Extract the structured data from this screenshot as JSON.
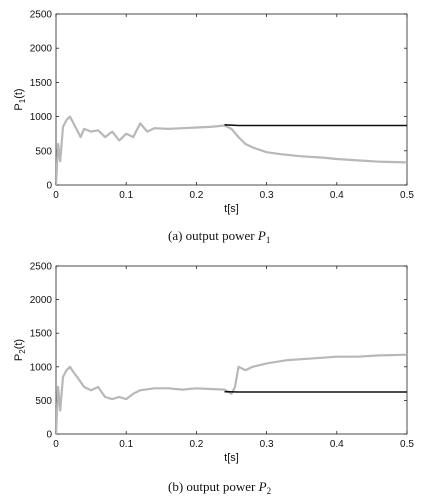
{
  "chart_data": [
    {
      "type": "line",
      "caption": "(a) output power P1",
      "caption_text": "(a)  output power ",
      "caption_var": "P",
      "caption_sub": "1",
      "ylabel": "P1(t)",
      "ylabel_main": "P",
      "ylabel_sub": "1",
      "ylabel_tail": "(t)",
      "xlabel": "t[s]",
      "xlim": [
        0,
        0.5
      ],
      "ylim": [
        0,
        2500
      ],
      "xticks": [
        "0",
        "0.1",
        "0.2",
        "0.3",
        "0.4",
        "0.5"
      ],
      "yticks": [
        "0",
        "500",
        "1000",
        "1500",
        "2000",
        "2500"
      ],
      "series": [
        {
          "color": "#b8b8b8",
          "x": [
            0,
            0.003,
            0.006,
            0.01,
            0.015,
            0.02,
            0.025,
            0.03,
            0.035,
            0.04,
            0.05,
            0.06,
            0.07,
            0.08,
            0.09,
            0.1,
            0.11,
            0.12,
            0.13,
            0.14,
            0.16,
            0.18,
            0.2,
            0.22,
            0.24,
            0.25,
            0.26,
            0.27,
            0.28,
            0.3,
            0.32,
            0.35,
            0.38,
            0.4,
            0.43,
            0.46,
            0.5
          ],
          "y": [
            0,
            600,
            350,
            850,
            950,
            1000,
            900,
            800,
            700,
            820,
            780,
            800,
            700,
            780,
            650,
            750,
            700,
            900,
            780,
            830,
            820,
            830,
            840,
            850,
            870,
            820,
            700,
            600,
            550,
            480,
            450,
            420,
            400,
            380,
            360,
            340,
            330
          ]
        },
        {
          "color": "#111111",
          "x": [
            0.24,
            0.26,
            0.3,
            0.35,
            0.4,
            0.45,
            0.5
          ],
          "y": [
            880,
            870,
            870,
            870,
            870,
            870,
            870
          ]
        }
      ]
    },
    {
      "type": "line",
      "caption": "(b) output power P2",
      "caption_text": "(b)  output power ",
      "caption_var": "P",
      "caption_sub": "2",
      "ylabel": "P2(t)",
      "ylabel_main": "P",
      "ylabel_sub": "2",
      "ylabel_tail": "(t)",
      "xlabel": "t[s]",
      "xlim": [
        0,
        0.5
      ],
      "ylim": [
        0,
        2500
      ],
      "xticks": [
        "0",
        "0.1",
        "0.2",
        "0.3",
        "0.4",
        "0.5"
      ],
      "yticks": [
        "0",
        "500",
        "1000",
        "1500",
        "2000",
        "2500"
      ],
      "series": [
        {
          "color": "#b8b8b8",
          "x": [
            0,
            0.003,
            0.006,
            0.01,
            0.015,
            0.02,
            0.025,
            0.03,
            0.04,
            0.05,
            0.06,
            0.07,
            0.08,
            0.09,
            0.1,
            0.11,
            0.12,
            0.14,
            0.16,
            0.18,
            0.2,
            0.22,
            0.24,
            0.25,
            0.255,
            0.26,
            0.27,
            0.28,
            0.3,
            0.33,
            0.36,
            0.4,
            0.43,
            0.46,
            0.5
          ],
          "y": [
            0,
            700,
            350,
            850,
            950,
            1000,
            920,
            850,
            700,
            650,
            700,
            550,
            520,
            550,
            520,
            600,
            650,
            680,
            680,
            660,
            680,
            670,
            660,
            600,
            700,
            1000,
            950,
            1000,
            1050,
            1100,
            1120,
            1150,
            1150,
            1170,
            1180
          ]
        },
        {
          "color": "#111111",
          "x": [
            0.24,
            0.26,
            0.3,
            0.35,
            0.4,
            0.45,
            0.5
          ],
          "y": [
            630,
            625,
            625,
            625,
            625,
            625,
            625
          ]
        }
      ]
    }
  ]
}
